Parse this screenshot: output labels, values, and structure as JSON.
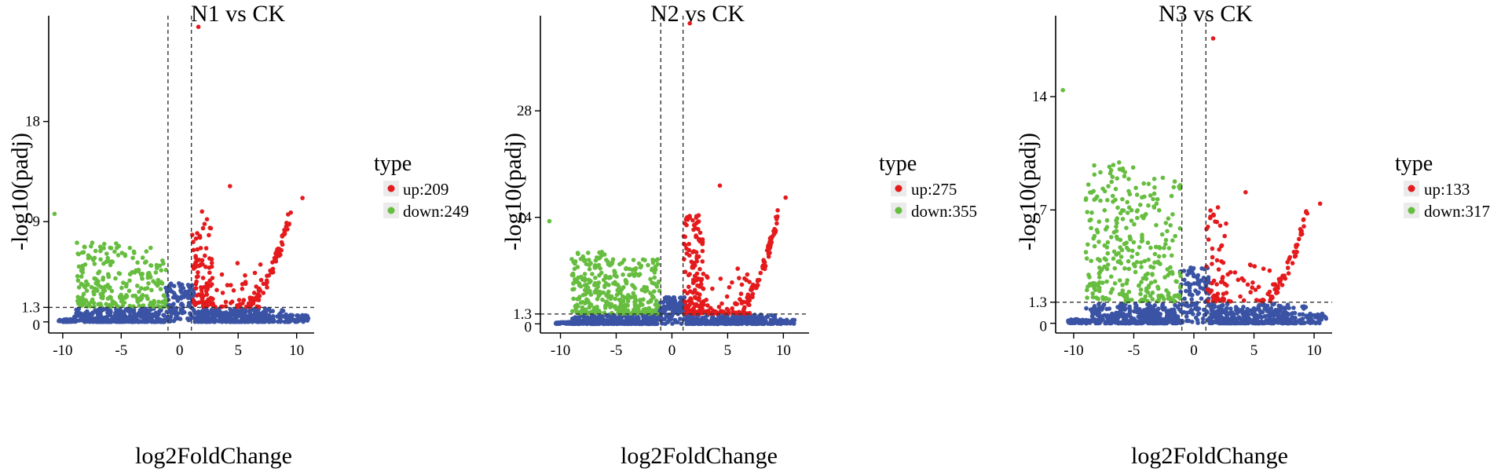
{
  "figure": {
    "panels": [
      {
        "title": "N1 vs CK",
        "legend": {
          "title": "type",
          "up": "up:209",
          "down": "down:249"
        }
      },
      {
        "title": "N2 vs CK",
        "legend": {
          "title": "type",
          "up": "up:275",
          "down": "down:355"
        }
      },
      {
        "title": "N3 vs CK",
        "legend": {
          "title": "type",
          "up": "up:133",
          "down": "down:317"
        }
      }
    ]
  },
  "colors": {
    "up": "#e41a1c",
    "down": "#66bd3f",
    "nodiff": "#3a53a4",
    "axis": "#000000",
    "threshold_line": "#333333"
  },
  "chart_data": [
    {
      "type": "scatter",
      "title": "N1 vs CK",
      "xlabel": "log2FoldChange",
      "ylabel": "-log10(padj)",
      "xlim": [
        -11.2,
        11.5
      ],
      "ylim": [
        -1.0,
        27.5
      ],
      "xticks": [
        -10,
        -5,
        0,
        5,
        10
      ],
      "yticks": [
        0,
        1.3,
        9,
        18
      ],
      "thresholds": {
        "x": [
          -1,
          1
        ],
        "y": 1.3
      },
      "legend": {
        "title": "type",
        "entries": [
          "up:209",
          "down:249"
        ],
        "position": "right"
      },
      "series": [
        {
          "name": "up:209",
          "counts": 209,
          "x_range": [
            1,
            10.5
          ],
          "y_max": 26.5
        },
        {
          "name": "down:249",
          "counts": 249,
          "x_range": [
            -10.7,
            -1
          ],
          "y_max": 9.7
        }
      ],
      "grid": false
    },
    {
      "type": "scatter",
      "title": "N2 vs CK",
      "xlabel": "log2FoldChange",
      "ylabel": "-log10(padj)",
      "xlim": [
        -11.8,
        12.3
      ],
      "ylim": [
        -1.2,
        40.5
      ],
      "xticks": [
        -10,
        -5,
        0,
        5,
        10
      ],
      "yticks": [
        0,
        1.3,
        14,
        28
      ],
      "thresholds": {
        "x": [
          -1,
          1
        ],
        "y": 1.3
      },
      "legend": {
        "title": "type",
        "entries": [
          "up:275",
          "down:355"
        ],
        "position": "right"
      },
      "series": [
        {
          "name": "up:275",
          "counts": 275,
          "x_range": [
            1,
            10.2
          ],
          "y_max": 39.5
        },
        {
          "name": "down:355",
          "counts": 355,
          "x_range": [
            -11,
            -1
          ],
          "y_max": 13.5
        }
      ],
      "grid": false
    },
    {
      "type": "scatter",
      "title": "N3 vs CK",
      "xlabel": "log2FoldChange",
      "ylabel": "-log10(padj)",
      "xlim": [
        -11.5,
        11.5
      ],
      "ylim": [
        -0.6,
        19.0
      ],
      "xticks": [
        -10,
        -5,
        0,
        5,
        10
      ],
      "yticks": [
        0,
        1.3,
        7,
        14
      ],
      "thresholds": {
        "x": [
          -1,
          1
        ],
        "y": 1.3
      },
      "legend": {
        "title": "type",
        "entries": [
          "up:133",
          "down:317"
        ],
        "position": "right"
      },
      "series": [
        {
          "name": "up:133",
          "counts": 133,
          "x_range": [
            1,
            10.5
          ],
          "y_max": 17.6
        },
        {
          "name": "down:317",
          "counts": 317,
          "x_range": [
            -10.9,
            -1
          ],
          "y_max": 14.4
        }
      ],
      "grid": false
    }
  ]
}
